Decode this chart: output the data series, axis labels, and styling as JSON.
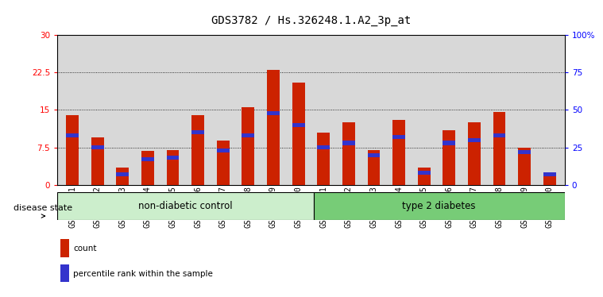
{
  "title": "GDS3782 / Hs.326248.1.A2_3p_at",
  "samples": [
    "GSM524151",
    "GSM524152",
    "GSM524153",
    "GSM524154",
    "GSM524155",
    "GSM524156",
    "GSM524157",
    "GSM524158",
    "GSM524159",
    "GSM524160",
    "GSM524161",
    "GSM524162",
    "GSM524163",
    "GSM524164",
    "GSM524165",
    "GSM524166",
    "GSM524167",
    "GSM524168",
    "GSM524169",
    "GSM524170"
  ],
  "count_values": [
    14.0,
    9.5,
    3.5,
    6.8,
    7.0,
    14.0,
    8.8,
    15.5,
    23.0,
    20.5,
    10.5,
    12.5,
    7.0,
    13.0,
    3.5,
    11.0,
    12.5,
    14.5,
    7.5,
    2.5
  ],
  "percentile_pct": [
    33,
    25,
    7,
    17,
    18,
    35,
    23,
    33,
    48,
    40,
    25,
    28,
    20,
    32,
    8,
    28,
    30,
    33,
    22,
    7
  ],
  "non_diabetic_count": 10,
  "total_samples": 20,
  "ylim_left": [
    0,
    30
  ],
  "ylim_right": [
    0,
    100
  ],
  "yticks_left": [
    0,
    7.5,
    15,
    22.5,
    30
  ],
  "ytick_labels_left": [
    "0",
    "7.5",
    "15",
    "22.5",
    "30"
  ],
  "yticks_right": [
    0,
    25,
    50,
    75,
    100
  ],
  "ytick_labels_right": [
    "0",
    "25",
    "50",
    "75",
    "100%"
  ],
  "bar_color_red": "#CC2200",
  "bar_color_blue": "#3333CC",
  "bar_width": 0.5,
  "bg_color_plot": "#d8d8d8",
  "bg_color_label1": "#cceecc",
  "bg_color_label2": "#77cc77",
  "label1": "non-diabetic control",
  "label2": "type 2 diabetes",
  "disease_state_label": "disease state",
  "legend_count": "count",
  "legend_pct": "percentile rank within the sample",
  "title_fontsize": 10,
  "tick_fontsize": 7,
  "label_fontsize": 8.5
}
